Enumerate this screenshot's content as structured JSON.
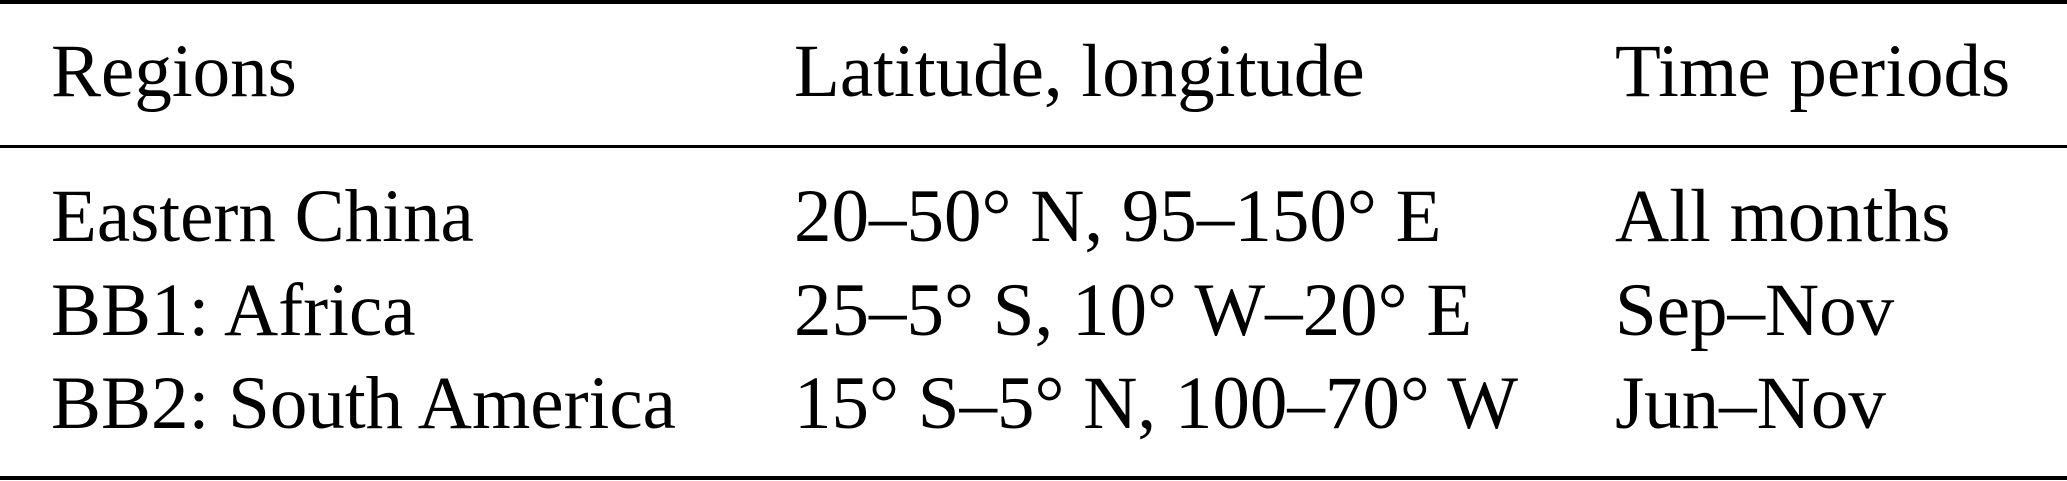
{
  "table": {
    "headers": [
      "Regions",
      "Latitude, longitude",
      "Time periods"
    ],
    "rows": [
      [
        "Eastern China",
        "20–50° N, 95–150° E",
        "All months"
      ],
      [
        "BB1: Africa",
        "25–5° S, 10° W–20° E",
        "Sep–Nov"
      ],
      [
        "BB2: South America",
        "15° S–5° N, 100–70° W",
        "Jun–Nov"
      ]
    ]
  }
}
